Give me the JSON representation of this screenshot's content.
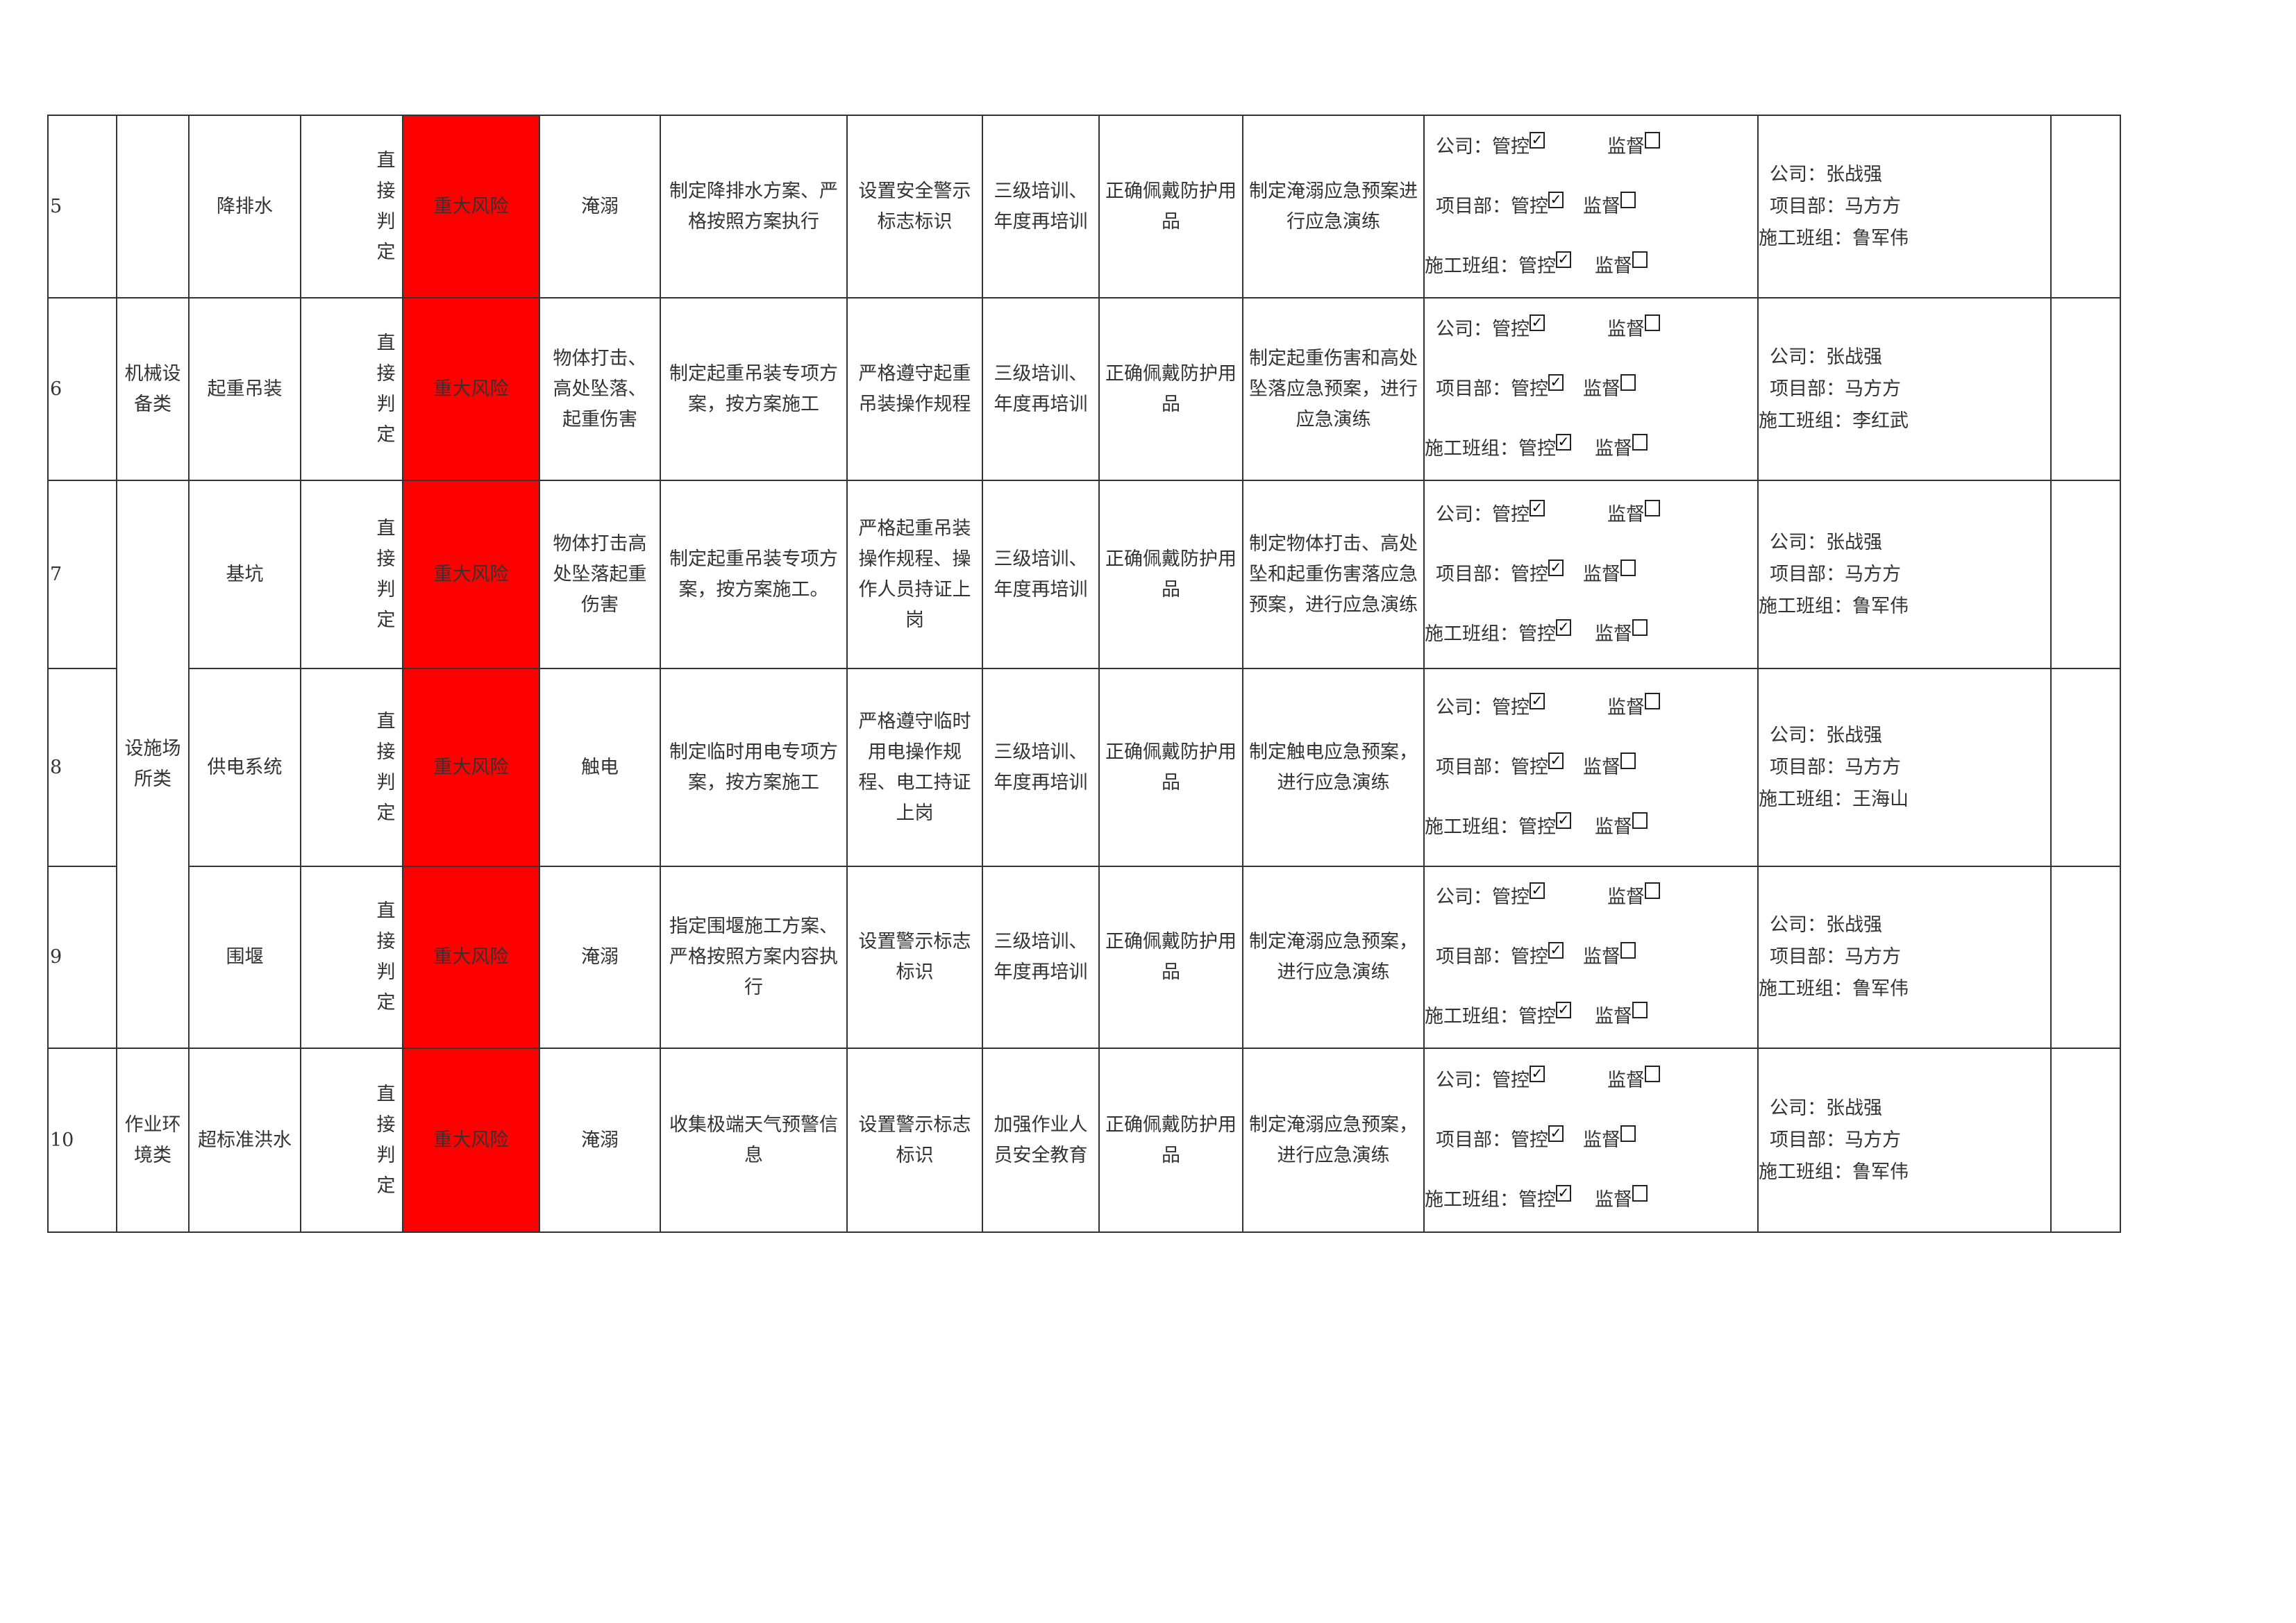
{
  "check_mark": "✓",
  "rows": [
    {
      "no": "5",
      "category": "",
      "item": "降排水",
      "judge": "直接判定",
      "risk": "重大风险",
      "hazard": "淹溺",
      "tech": "制定降排水方案、严格按照方案执行",
      "mgmt": "设置安全警示标志标识",
      "train": "三级培训、年度再培训",
      "ppe": "正确佩戴防护用品",
      "emerg": "制定淹溺应急预案进行应急演练",
      "control": [
        {
          "label": "公司：",
          "a": "管控",
          "a_checked": true,
          "b": "监督",
          "b_checked": false
        },
        {
          "label": "项目部：",
          "a": "管控",
          "a_checked": true,
          "b": "监督",
          "b_checked": false
        },
        {
          "label": "施工班组：",
          "a": "管控",
          "a_checked": true,
          "b": "监督",
          "b_checked": false
        }
      ],
      "resp": [
        "公司：张战强",
        "项目部：马方方",
        "施工班组：鲁军伟"
      ],
      "remark": ""
    },
    {
      "no": "6",
      "category": "机械设备类",
      "item": "起重吊装",
      "judge": "直接判定",
      "risk": "重大风险",
      "hazard": "物体打击、高处坠落、起重伤害",
      "tech": "制定起重吊装专项方案，按方案施工",
      "mgmt": "严格遵守起重吊装操作规程",
      "train": "三级培训、年度再培训",
      "ppe": "正确佩戴防护用品",
      "emerg": "制定起重伤害和高处坠落应急预案，进行应急演练",
      "control": [
        {
          "label": "公司：",
          "a": "管控",
          "a_checked": true,
          "b": "监督",
          "b_checked": false
        },
        {
          "label": "项目部：",
          "a": "管控",
          "a_checked": true,
          "b": "监督",
          "b_checked": false
        },
        {
          "label": "施工班组：",
          "a": "管控",
          "a_checked": true,
          "b": "监督",
          "b_checked": false
        }
      ],
      "resp": [
        "公司：张战强",
        "项目部：马方方",
        "施工班组：李红武"
      ],
      "remark": ""
    },
    {
      "no": "7",
      "category": "设施场所类",
      "item": "基坑",
      "judge": "直接判定",
      "risk": "重大风险",
      "hazard": "物体打击高处坠落起重伤害",
      "tech": "制定起重吊装专项方案，按方案施工。",
      "mgmt": "严格起重吊装操作规程、操作人员持证上岗",
      "train": "三级培训、年度再培训",
      "ppe": "正确佩戴防护用品",
      "emerg": "制定物体打击、高处坠和起重伤害落应急预案，进行应急演练",
      "control": [
        {
          "label": "公司：",
          "a": "管控",
          "a_checked": true,
          "b": "监督",
          "b_checked": false
        },
        {
          "label": "项目部：",
          "a": "管控",
          "a_checked": true,
          "b": "监督",
          "b_checked": false
        },
        {
          "label": "施工班组：",
          "a": "管控",
          "a_checked": true,
          "b": "监督",
          "b_checked": false
        }
      ],
      "resp": [
        "公司：张战强",
        "项目部：马方方",
        "施工班组：鲁军伟"
      ],
      "remark": ""
    },
    {
      "no": "8",
      "category": null,
      "item": "供电系统",
      "judge": "直接判定",
      "risk": "重大风险",
      "hazard": "触电",
      "tech": "制定临时用电专项方案，按方案施工",
      "mgmt": "严格遵守临时用电操作规 程、电工持证上岗",
      "train": "三级培训、年度再培训",
      "ppe": "正确佩戴防护用品",
      "emerg": "制定触电应急预案，进行应急演练",
      "control": [
        {
          "label": "公司：",
          "a": "管控",
          "a_checked": true,
          "b": "监督",
          "b_checked": false
        },
        {
          "label": "项目部：",
          "a": "管控",
          "a_checked": true,
          "b": "监督",
          "b_checked": false
        },
        {
          "label": "施工班组：",
          "a": "管控",
          "a_checked": true,
          "b": "监督",
          "b_checked": false
        }
      ],
      "resp": [
        "公司：张战强",
        "项目部：马方方",
        "施工班组：王海山"
      ],
      "remark": ""
    },
    {
      "no": "9",
      "category": null,
      "item": "围堰",
      "judge": "直接判定",
      "risk": "重大风险",
      "hazard": "淹溺",
      "tech": "指定围堰施工方案、严格按照方案内容执行",
      "mgmt": "设置警示标志标识",
      "train": "三级培训、年度再培训",
      "ppe": "正确佩戴防护用品",
      "emerg": "制定淹溺应急预案，进行应急演练",
      "control": [
        {
          "label": "公司：",
          "a": "管控",
          "a_checked": true,
          "b": "监督",
          "b_checked": false
        },
        {
          "label": "项目部：",
          "a": "管控",
          "a_checked": true,
          "b": "监督",
          "b_checked": false
        },
        {
          "label": "施工班组：",
          "a": "管控",
          "a_checked": true,
          "b": "监督",
          "b_checked": false
        }
      ],
      "resp": [
        "公司：张战强",
        "项目部：马方方",
        "施工班组：鲁军伟"
      ],
      "remark": ""
    },
    {
      "no": "10",
      "category": "作业环境类",
      "item": "超标准洪水",
      "judge": "直接判定",
      "risk": "重大风险",
      "hazard": "淹溺",
      "tech": "收集极端天气预警信息",
      "mgmt": "设置警示标志标识",
      "train": "加强作业人员安全教育",
      "ppe": "正确佩戴防护用品",
      "emerg": "制定淹溺应急预案，进行应急演练",
      "control": [
        {
          "label": "公司：",
          "a": "管控",
          "a_checked": true,
          "b": "监督",
          "b_checked": false
        },
        {
          "label": "项目部：",
          "a": "管控",
          "a_checked": true,
          "b": "监督",
          "b_checked": false
        },
        {
          "label": "施工班组：",
          "a": "管控",
          "a_checked": true,
          "b": "监督",
          "b_checked": false
        }
      ],
      "resp": [
        "公司：张战强",
        "项目部：马方方",
        "施工班组：鲁军伟"
      ],
      "remark": ""
    }
  ],
  "colors": {
    "risk_fill": "#FF0000",
    "border": "#333333"
  }
}
